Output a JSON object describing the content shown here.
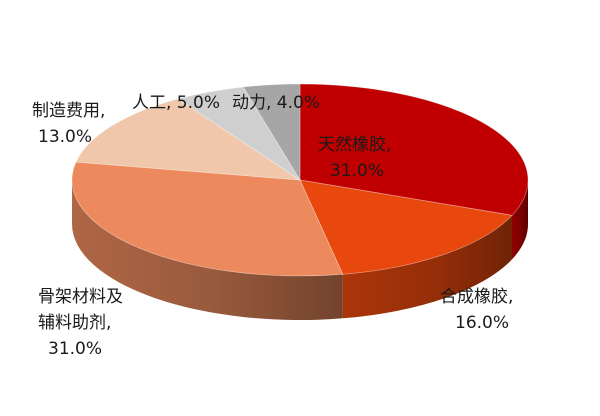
{
  "chart_data": {
    "type": "pie",
    "style": "3d",
    "title": "",
    "slices": [
      {
        "label": "天然橡胶",
        "pct_text": "31.0%",
        "value": 31.0,
        "color": "#c00000"
      },
      {
        "label": "合成橡胶",
        "pct_text": "16.0%",
        "value": 16.0,
        "color": "#e8480d"
      },
      {
        "label": "骨架材料及辅料助剂",
        "pct_text": "31.0%",
        "value": 31.0,
        "color": "#ec8a5e"
      },
      {
        "label": "制造费用",
        "pct_text": "13.0%",
        "value": 13.0,
        "color": "#f0c7ab"
      },
      {
        "label": "人工",
        "pct_text": "5.0%",
        "value": 5.0,
        "color": "#cfcfcf"
      },
      {
        "label": "动力",
        "pct_text": "4.0%",
        "value": 4.0,
        "color": "#a6a6a6"
      }
    ],
    "labels": {
      "l0": {
        "line1": "天然橡胶,",
        "line2": "31.0%"
      },
      "l1": {
        "line1": "合成橡胶,",
        "line2": "16.0%"
      },
      "l2": {
        "line1": "骨架材料及",
        "line2": "辅料助剂,",
        "line3": "31.0%"
      },
      "l3": {
        "line1": "制造费用,",
        "line2": "13.0%"
      },
      "l4": {
        "line1": "人工, 5.0%"
      },
      "l5": {
        "line1": "动力, 4.0%"
      }
    }
  }
}
